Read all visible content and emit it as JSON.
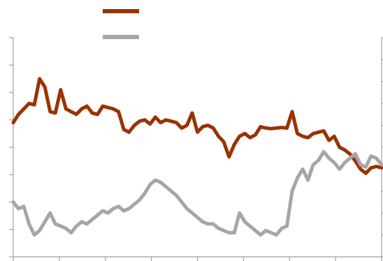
{
  "chart_data": {
    "type": "line",
    "title": "",
    "xlabel": "",
    "ylabel": "",
    "grid": false,
    "legend": {
      "placement": "top-left",
      "orientation": "vertical"
    },
    "x_ticks": 9,
    "y_left": {
      "range": [
        0,
        8
      ],
      "ticks": 9
    },
    "y_right": {
      "range": [
        0,
        10
      ],
      "ticks": 11
    },
    "series": [
      {
        "name": "",
        "color": "#993300",
        "axis": "left",
        "points": [
          [
            0,
            4.9
          ],
          [
            1,
            5.2
          ],
          [
            2,
            5.4
          ],
          [
            3,
            5.6
          ],
          [
            4,
            5.55
          ],
          [
            5,
            6.5
          ],
          [
            6,
            6.2
          ],
          [
            7,
            5.3
          ],
          [
            8,
            5.25
          ],
          [
            9,
            6.1
          ],
          [
            10,
            5.4
          ],
          [
            11,
            5.3
          ],
          [
            12,
            5.2
          ],
          [
            13,
            5.4
          ],
          [
            14,
            5.5
          ],
          [
            15,
            5.25
          ],
          [
            16,
            5.2
          ],
          [
            17,
            5.5
          ],
          [
            18,
            5.45
          ],
          [
            19,
            5.4
          ],
          [
            20,
            5.3
          ],
          [
            21,
            4.65
          ],
          [
            22,
            4.55
          ],
          [
            23,
            4.8
          ],
          [
            24,
            4.95
          ],
          [
            25,
            5.0
          ],
          [
            26,
            4.85
          ],
          [
            27,
            5.1
          ],
          [
            28,
            4.9
          ],
          [
            29,
            5.0
          ],
          [
            30,
            4.95
          ],
          [
            31,
            4.9
          ],
          [
            32,
            4.7
          ],
          [
            33,
            4.8
          ],
          [
            34,
            5.25
          ],
          [
            35,
            4.55
          ],
          [
            36,
            4.75
          ],
          [
            37,
            4.8
          ],
          [
            38,
            4.7
          ],
          [
            39,
            4.4
          ],
          [
            40,
            4.2
          ],
          [
            41,
            3.65
          ],
          [
            42,
            4.1
          ],
          [
            43,
            4.4
          ],
          [
            44,
            4.5
          ],
          [
            45,
            4.35
          ],
          [
            46,
            4.45
          ],
          [
            47,
            4.75
          ],
          [
            48,
            4.7
          ],
          [
            49,
            4.68
          ],
          [
            50,
            4.7
          ],
          [
            51,
            4.72
          ],
          [
            52,
            4.7
          ],
          [
            53,
            5.3
          ],
          [
            54,
            4.5
          ],
          [
            55,
            4.4
          ],
          [
            56,
            4.35
          ],
          [
            57,
            4.5
          ],
          [
            58,
            4.55
          ],
          [
            59,
            4.6
          ],
          [
            60,
            4.25
          ],
          [
            61,
            4.4
          ],
          [
            62,
            4.0
          ],
          [
            63,
            3.9
          ],
          [
            64,
            3.75
          ],
          [
            65,
            3.5
          ],
          [
            66,
            3.2
          ],
          [
            67,
            3.05
          ],
          [
            68,
            3.25
          ],
          [
            69,
            3.3
          ],
          [
            70,
            3.25
          ]
        ]
      },
      {
        "name": "",
        "color": "#a6a6a6",
        "axis": "right",
        "points": [
          [
            0,
            2.5
          ],
          [
            1,
            2.2
          ],
          [
            2,
            2.3
          ],
          [
            3,
            1.5
          ],
          [
            4,
            1.0
          ],
          [
            5,
            1.2
          ],
          [
            6,
            1.6
          ],
          [
            7,
            2.0
          ],
          [
            8,
            1.5
          ],
          [
            9,
            1.4
          ],
          [
            10,
            1.3
          ],
          [
            11,
            1.1
          ],
          [
            12,
            1.4
          ],
          [
            13,
            1.6
          ],
          [
            14,
            1.5
          ],
          [
            15,
            1.7
          ],
          [
            16,
            1.9
          ],
          [
            17,
            2.1
          ],
          [
            18,
            2.0
          ],
          [
            19,
            2.2
          ],
          [
            20,
            2.3
          ],
          [
            21,
            2.1
          ],
          [
            22,
            2.2
          ],
          [
            23,
            2.4
          ],
          [
            24,
            2.6
          ],
          [
            25,
            2.9
          ],
          [
            26,
            3.3
          ],
          [
            27,
            3.5
          ],
          [
            28,
            3.4
          ],
          [
            29,
            3.2
          ],
          [
            30,
            3.0
          ],
          [
            31,
            2.8
          ],
          [
            32,
            2.5
          ],
          [
            33,
            2.2
          ],
          [
            34,
            2.0
          ],
          [
            35,
            1.8
          ],
          [
            36,
            1.6
          ],
          [
            37,
            1.5
          ],
          [
            38,
            1.5
          ],
          [
            39,
            1.3
          ],
          [
            40,
            1.2
          ],
          [
            41,
            1.1
          ],
          [
            42,
            1.1
          ],
          [
            43,
            2.0
          ],
          [
            44,
            1.6
          ],
          [
            45,
            1.4
          ],
          [
            46,
            1.2
          ],
          [
            47,
            1.0
          ],
          [
            48,
            1.2
          ],
          [
            49,
            1.1
          ],
          [
            50,
            1.0
          ],
          [
            51,
            1.3
          ],
          [
            52,
            1.4
          ],
          [
            53,
            3.0
          ],
          [
            54,
            3.6
          ],
          [
            55,
            4.0
          ],
          [
            56,
            3.5
          ],
          [
            57,
            4.2
          ],
          [
            58,
            4.4
          ],
          [
            59,
            4.8
          ],
          [
            60,
            4.5
          ],
          [
            61,
            4.3
          ],
          [
            62,
            4.0
          ],
          [
            63,
            4.3
          ],
          [
            64,
            4.5
          ],
          [
            65,
            4.7
          ],
          [
            66,
            4.2
          ],
          [
            67,
            4.1
          ],
          [
            68,
            4.6
          ],
          [
            69,
            4.5
          ],
          [
            70,
            4.2
          ]
        ]
      }
    ]
  }
}
